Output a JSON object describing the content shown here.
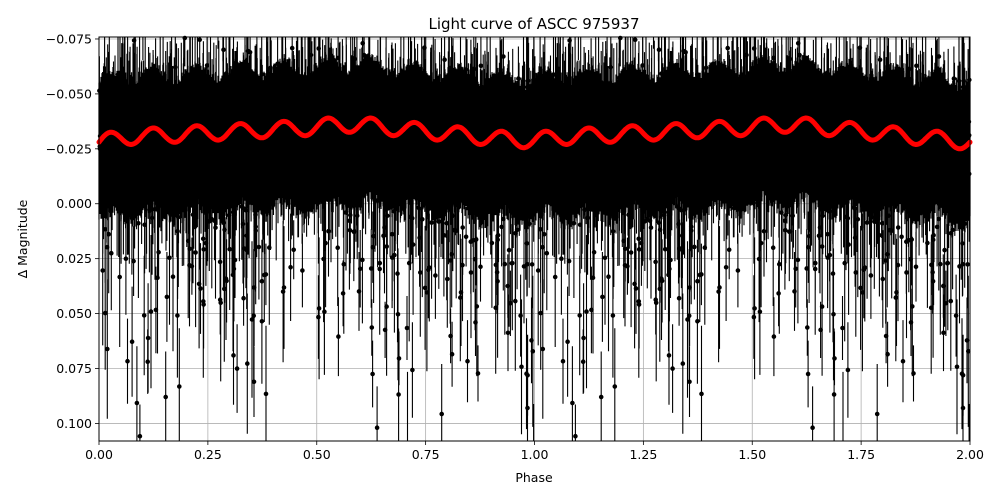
{
  "chart_data": {
    "type": "scatter",
    "title": "Light curve of ASCC 975937",
    "xlabel": "Phase",
    "ylabel": "Δ Magnitude",
    "xlim": [
      0.0,
      2.0
    ],
    "ylim": [
      -0.0759,
      0.108
    ],
    "y_inverted": true,
    "grid": true,
    "legend": null,
    "x_ticks": [
      0.0,
      0.25,
      0.5,
      0.75,
      1.0,
      1.25,
      1.5,
      1.75,
      2.0
    ],
    "x_tick_labels": [
      "0.00",
      "0.25",
      "0.50",
      "0.75",
      "1.00",
      "1.25",
      "1.50",
      "1.75",
      "2.00"
    ],
    "y_ticks": [
      -0.075,
      -0.05,
      -0.025,
      0.0,
      0.025,
      0.05,
      0.075,
      0.1
    ],
    "y_tick_labels": [
      "−0.075",
      "−0.050",
      "−0.025",
      "0.000",
      "0.025",
      "0.050",
      "0.075",
      "0.100"
    ],
    "series": [
      {
        "name": "observations",
        "kind": "errorbar-scatter",
        "color": "#000000",
        "n_points_per_phase": 1400,
        "phase_range": [
          0.0,
          1.0
        ],
        "repeated_at_phase_offset": 1.0,
        "mean_delta_mag": -0.03,
        "typical_scatter": 0.035,
        "typical_errorbar": 0.02,
        "notes": "Dense black points with error bars spanning roughly -0.075 to 0.108; faint tail toward positive (fainter) magnitudes with sparse gaps near phase 0.35-0.6 and 1.35-1.6 below 0.05"
      },
      {
        "name": "model fit",
        "kind": "line",
        "color": "#ff0000",
        "line_width": 5,
        "x": [
          0.0,
          0.05,
          0.1,
          0.15,
          0.2,
          0.25,
          0.3,
          0.35,
          0.4,
          0.45,
          0.5,
          0.55,
          0.6,
          0.65,
          0.7,
          0.75,
          0.8,
          0.85,
          0.9,
          0.95,
          1.0,
          1.05,
          1.1,
          1.15,
          1.2,
          1.25,
          1.3,
          1.35,
          1.4,
          1.45,
          1.5,
          1.55,
          1.6,
          1.65,
          1.7,
          1.75,
          1.8,
          1.85,
          1.9,
          1.95,
          2.0
        ],
        "trend": [
          -0.028,
          -0.03,
          -0.031,
          -0.031,
          -0.032,
          -0.032,
          -0.033,
          -0.033,
          -0.034,
          -0.034,
          -0.035,
          -0.036,
          -0.036,
          -0.035,
          -0.034,
          -0.033,
          -0.032,
          -0.031,
          -0.03,
          -0.029,
          -0.029,
          -0.03,
          -0.031,
          -0.031,
          -0.032,
          -0.032,
          -0.033,
          -0.033,
          -0.034,
          -0.034,
          -0.035,
          -0.036,
          -0.036,
          -0.035,
          -0.034,
          -0.033,
          -0.032,
          -0.031,
          -0.03,
          -0.029,
          -0.028
        ],
        "oscillation_period": 0.1,
        "oscillation_amplitude": 0.0035
      }
    ]
  }
}
